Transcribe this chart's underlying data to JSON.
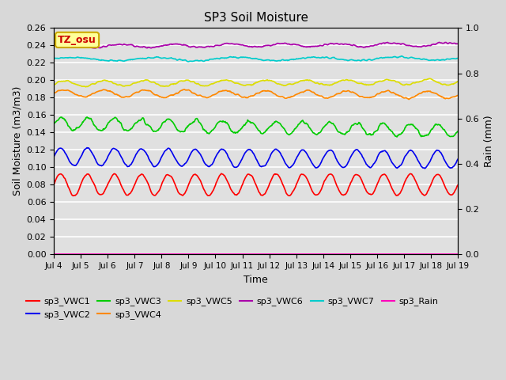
{
  "title": "SP3 Soil Moisture",
  "xlabel": "Time",
  "ylabel_left": "Soil Moisture (m3/m3)",
  "ylabel_right": "Rain (mm)",
  "ylim_left": [
    0.0,
    0.26
  ],
  "ylim_right": [
    0.0,
    1.0
  ],
  "background_color": "#d8d8d8",
  "plot_bg_color": "#e0e0e0",
  "grid_color": "#ffffff",
  "annotation_text": "TZ_osu",
  "annotation_bg": "#ffff99",
  "annotation_border": "#ccaa00",
  "x_tick_labels": [
    "Jul 4",
    "Jul 5",
    "Jul 6",
    "Jul 7",
    "Jul 8",
    "Jul 9",
    "Jul 10",
    "Jul 11",
    "Jul 12",
    "Jul 13",
    "Jul 14",
    "Jul 15",
    "Jul 16",
    "Jul 17",
    "Jul 18",
    "Jul 19"
  ],
  "series_order": [
    "sp3_VWC1",
    "sp3_VWC2",
    "sp3_VWC3",
    "sp3_VWC4",
    "sp3_VWC5",
    "sp3_VWC6",
    "sp3_VWC7",
    "sp3_Rain"
  ],
  "series": {
    "sp3_VWC1": {
      "color": "#ff0000",
      "base": 0.08,
      "amp": 0.012,
      "period": 1.0,
      "noise": 0.001,
      "trend": 0.0,
      "ax": "left"
    },
    "sp3_VWC2": {
      "color": "#0000ee",
      "base": 0.112,
      "amp": 0.01,
      "period": 1.0,
      "noise": 0.001,
      "trend": -0.003,
      "ax": "left"
    },
    "sp3_VWC3": {
      "color": "#00cc00",
      "base": 0.15,
      "amp": 0.007,
      "period": 1.0,
      "noise": 0.002,
      "trend": -0.008,
      "ax": "left"
    },
    "sp3_VWC4": {
      "color": "#ff8800",
      "base": 0.185,
      "amp": 0.004,
      "period": 1.5,
      "noise": 0.001,
      "trend": -0.002,
      "ax": "left"
    },
    "sp3_VWC5": {
      "color": "#dddd00",
      "base": 0.196,
      "amp": 0.003,
      "period": 1.5,
      "noise": 0.001,
      "trend": 0.002,
      "ax": "left"
    },
    "sp3_VWC6": {
      "color": "#aa00aa",
      "base": 0.239,
      "amp": 0.002,
      "period": 2.0,
      "noise": 0.001,
      "trend": 0.002,
      "ax": "left"
    },
    "sp3_VWC7": {
      "color": "#00cccc",
      "base": 0.224,
      "amp": 0.002,
      "period": 3.0,
      "noise": 0.001,
      "trend": 0.001,
      "ax": "left"
    },
    "sp3_Rain": {
      "color": "#ff00bb",
      "base": 0.0005,
      "amp": 0.0,
      "period": 1.0,
      "noise": 0.0,
      "trend": 0.0,
      "ax": "right"
    }
  }
}
